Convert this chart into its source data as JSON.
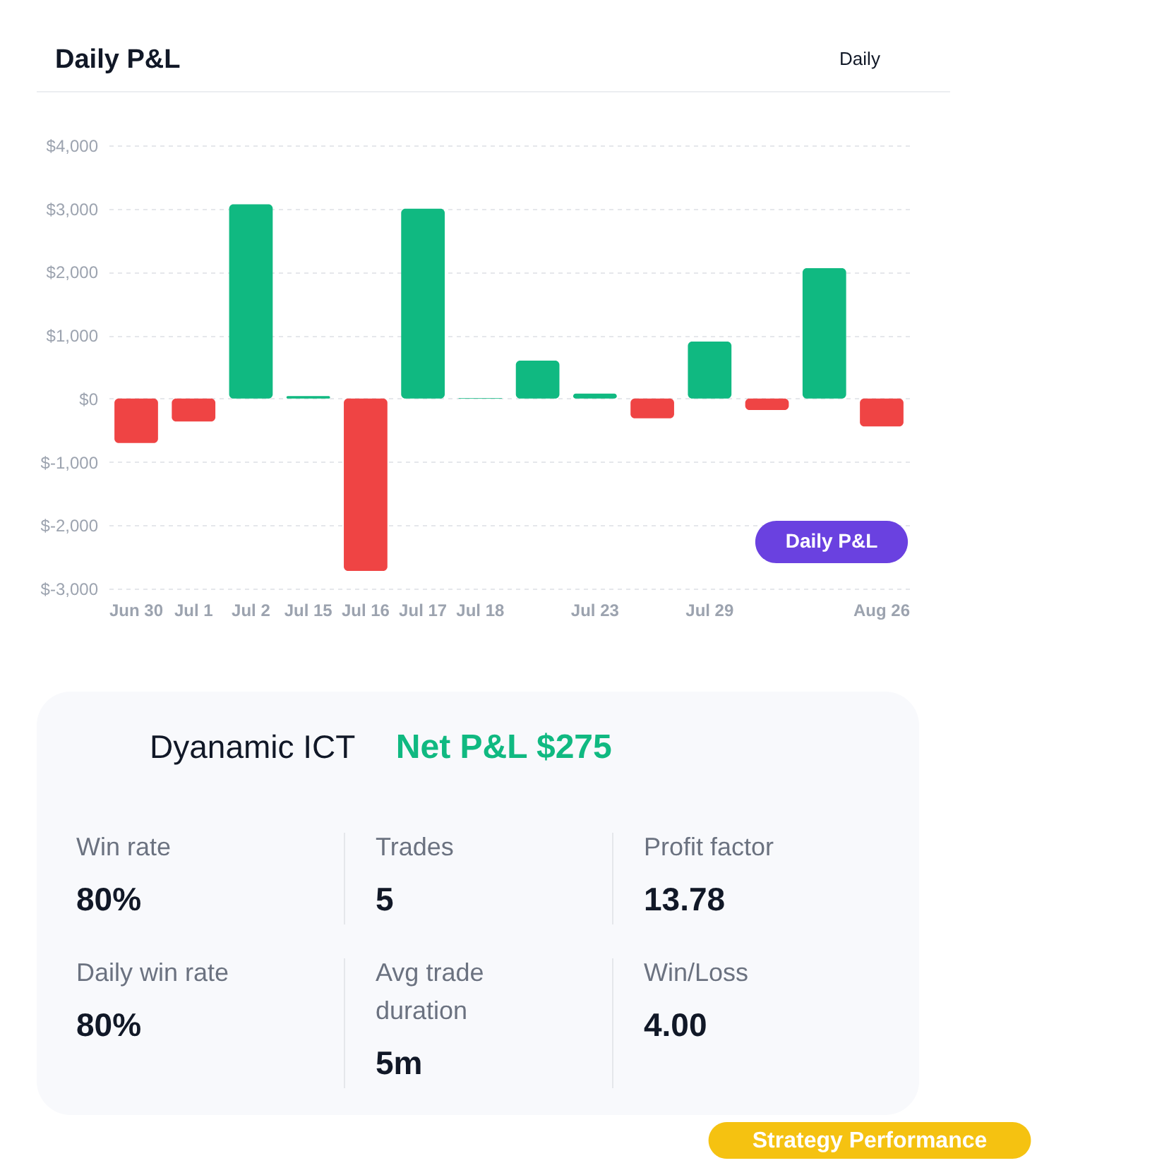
{
  "chart_data": [
    {
      "type": "bar",
      "title": "Daily P&L",
      "categories": [
        "Jun 30",
        "Jul 1",
        "Jul 2",
        "Jul 15",
        "Jul 16",
        "Jul 17",
        "Jul 18",
        null,
        "Jul 23",
        null,
        "Jul 29",
        null,
        null,
        "Aug 26"
      ],
      "values": [
        -700,
        -360,
        3070,
        40,
        -2720,
        3000,
        10,
        600,
        80,
        -310,
        900,
        -180,
        2060,
        -440
      ],
      "colors": [
        "#ef4444",
        "#ef4444",
        "#10b981",
        "#10b981",
        "#ef4444",
        "#10b981",
        "#10b981",
        "#10b981",
        "#10b981",
        "#ef4444",
        "#10b981",
        "#ef4444",
        "#10b981",
        "#ef4444"
      ],
      "ylim": [
        -3000,
        4000
      ],
      "yticks": [
        {
          "value": -3000,
          "label": "$-3,000"
        },
        {
          "value": -2000,
          "label": "$-2,000"
        },
        {
          "value": -1000,
          "label": "$-1,000"
        },
        {
          "value": 0,
          "label": "$0"
        },
        {
          "value": 1000,
          "label": "$1,000"
        },
        {
          "value": 2000,
          "label": "$2,000"
        },
        {
          "value": 3000,
          "label": "$3,000"
        },
        {
          "value": 4000,
          "label": "$4,000"
        }
      ],
      "grid": "y",
      "annotations": [
        "Daily",
        "Daily P&L"
      ]
    },
    {
      "type": "other",
      "title": "Dyanamic ICT",
      "subtitle": "Net P&L $275",
      "annotations": [
        "Win rate",
        "80%",
        "Trades",
        "5",
        "Profit factor",
        "13.78",
        "Daily win rate",
        "80%",
        "Avg trade duration",
        "5m",
        "Win/Loss",
        "4.00",
        "Strategy Performance"
      ]
    }
  ]
}
